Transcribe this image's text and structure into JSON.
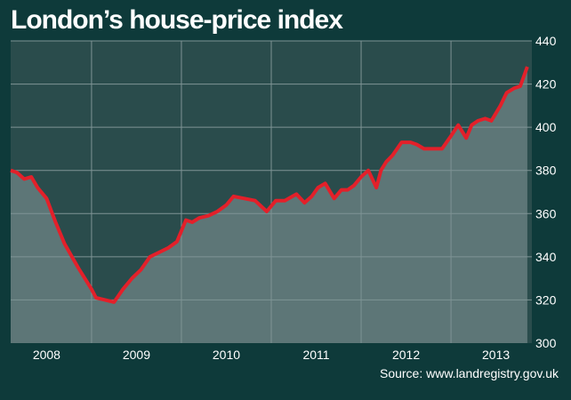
{
  "title": "London’s house-price index",
  "source": "Source: www.landregistry.gov.uk",
  "colors": {
    "background": "#0e3a3a",
    "plot_upper": "#2a4c4c",
    "plot_fill": "#5d7677",
    "line": "#e3202a",
    "grid": "#7f9495"
  },
  "chart_data": {
    "type": "area",
    "title": "London’s house-price index",
    "xlabel": "",
    "ylabel": "",
    "ylim": [
      300,
      440
    ],
    "xlim": [
      2007.6,
      2013.4
    ],
    "yticks": [
      300,
      320,
      340,
      360,
      380,
      400,
      420,
      440
    ],
    "xtick_labels": [
      {
        "label": "2008",
        "center": 2008.0
      },
      {
        "label": "2009",
        "center": 2009.0
      },
      {
        "label": "2010",
        "center": 2010.0
      },
      {
        "label": "2011",
        "center": 2011.0
      },
      {
        "label": "2012",
        "center": 2012.0
      },
      {
        "label": "2013",
        "center": 2013.0
      }
    ],
    "vgrid_x": [
      2008.5,
      2009.5,
      2010.5,
      2011.5,
      2012.5
    ],
    "grid": true,
    "series": [
      {
        "x": [
          2007.6,
          2007.67,
          2007.75,
          2007.83,
          2007.9,
          2008.0,
          2008.1,
          2008.2,
          2008.35,
          2008.5,
          2008.55,
          2008.65,
          2008.75,
          2008.85,
          2008.95,
          2009.05,
          2009.15,
          2009.25,
          2009.35,
          2009.45,
          2009.5,
          2009.55,
          2009.62,
          2009.7,
          2009.8,
          2009.9,
          2010.0,
          2010.08,
          2010.2,
          2010.32,
          2010.45,
          2010.55,
          2010.65,
          2010.78,
          2010.87,
          2010.95,
          2011.02,
          2011.1,
          2011.2,
          2011.28,
          2011.35,
          2011.42,
          2011.5,
          2011.58,
          2011.67,
          2011.72,
          2011.78,
          2011.85,
          2011.95,
          2012.05,
          2012.12,
          2012.2,
          2012.3,
          2012.4,
          2012.5,
          2012.58,
          2012.67,
          2012.73,
          2012.8,
          2012.88,
          2012.95,
          2013.05,
          2013.12,
          2013.2,
          2013.27,
          2013.35
        ],
        "values": [
          380,
          379,
          376,
          377,
          372,
          367,
          356,
          346,
          335,
          325,
          321,
          320,
          319,
          325,
          330,
          334,
          340,
          342,
          344,
          347,
          352,
          357,
          356,
          358,
          359,
          361,
          364,
          368,
          367,
          366,
          361,
          366,
          366,
          369,
          365,
          368,
          372,
          374,
          367,
          371,
          371,
          373,
          377,
          380,
          372,
          380,
          384,
          387,
          393,
          393,
          392,
          390,
          390,
          390,
          396,
          401,
          395,
          401,
          403,
          404,
          403,
          410,
          416,
          418,
          419,
          428
        ]
      }
    ]
  }
}
